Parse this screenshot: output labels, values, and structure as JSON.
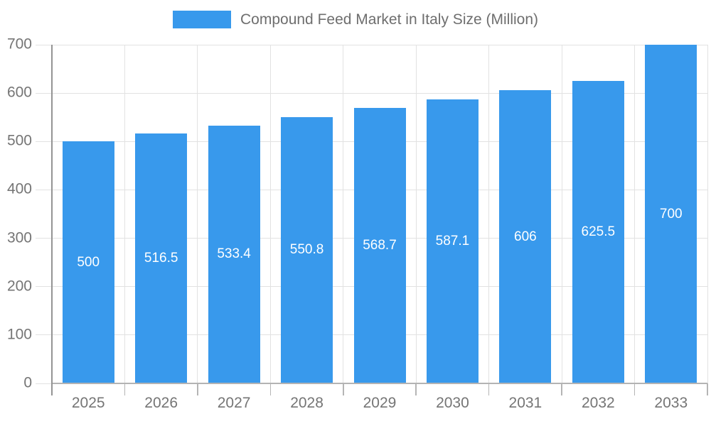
{
  "legend": {
    "label": "Compound Feed Market in Italy Size (Million)"
  },
  "chart_data": {
    "type": "bar",
    "title": "Compound Feed Market in Italy Size (Million)",
    "categories": [
      "2025",
      "2026",
      "2027",
      "2028",
      "2029",
      "2030",
      "2031",
      "2032",
      "2033"
    ],
    "values": [
      500,
      516.5,
      533.4,
      550.8,
      568.7,
      587.1,
      606,
      625.5,
      700
    ],
    "bar_labels": [
      "500",
      "516.5",
      "533.4",
      "550.8",
      "568.7",
      "587.1",
      "606",
      "625.5",
      "700"
    ],
    "xlabel": "",
    "ylabel": "",
    "ylim": [
      0,
      700
    ],
    "yticks": [
      0,
      100,
      200,
      300,
      400,
      500,
      600,
      700
    ],
    "grid": true,
    "legend_position": "top-center",
    "bar_label_position": "inside-middle",
    "colors": {
      "bar": "#3899EC",
      "bar_label": "#FFFFFF",
      "grid_line": "#E2E2E2",
      "axis_line": "#949494",
      "x_axis_line": "#B3B3B3",
      "tick_line": "#B5B5B5",
      "axis_text": "#757575",
      "legend_text": "#6E6E6E",
      "background": "#FFFFFF"
    }
  }
}
